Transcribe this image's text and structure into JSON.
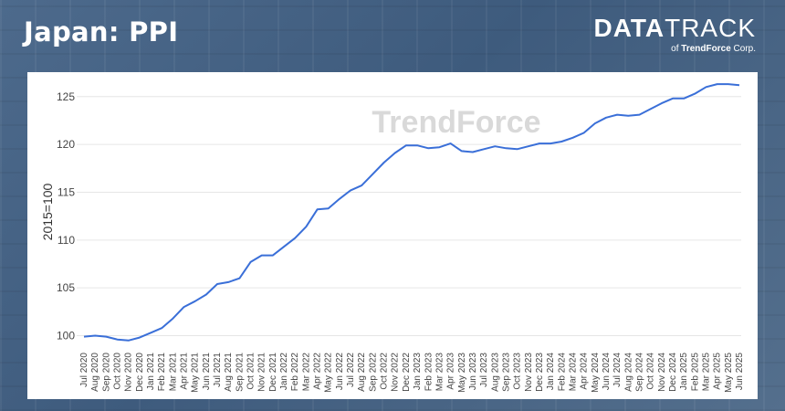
{
  "header": {
    "title": "Japan: PPI"
  },
  "brand": {
    "name_bold": "DATA",
    "name_light": "TRACK",
    "sub_prefix": "of ",
    "sub_name": "TrendForce",
    "sub_suffix": " Corp."
  },
  "watermark": "TrendForce",
  "colors": {
    "line": "#3a6fd8",
    "grid": "#e6e6e6"
  },
  "chart_data": {
    "type": "line",
    "title": "Japan: PPI",
    "ylabel": "2015=100",
    "ylim": [
      99,
      126.6
    ],
    "yticks": [
      100,
      105,
      110,
      115,
      120,
      125
    ],
    "grid": true,
    "legend": "none",
    "categories": [
      "Jul 2020",
      "Aug 2020",
      "Sep 2020",
      "Oct 2020",
      "Nov 2020",
      "Dec 2020",
      "Jan 2021",
      "Feb 2021",
      "Mar 2021",
      "Apr 2021",
      "May 2021",
      "Jun 2021",
      "Jul 2021",
      "Aug 2021",
      "Sep 2021",
      "Oct 2021",
      "Nov 2021",
      "Dec 2021",
      "Jan 2022",
      "Feb 2022",
      "Mar 2022",
      "Apr 2022",
      "May 2022",
      "Jun 2022",
      "Jul 2022",
      "Aug 2022",
      "Sep 2022",
      "Oct 2022",
      "Nov 2022",
      "Dec 2022",
      "Jan 2023",
      "Feb 2023",
      "Mar 2023",
      "Apr 2023",
      "May 2023",
      "Jun 2023",
      "Jul 2023",
      "Aug 2023",
      "Sep 2023",
      "Oct 2023",
      "Nov 2023",
      "Dec 2023",
      "Jan 2024",
      "Feb 2024",
      "Mar 2024",
      "Apr 2024",
      "May 2024",
      "Jun 2024",
      "Jul 2024",
      "Aug 2024",
      "Sep 2024",
      "Oct 2024",
      "Nov 2024",
      "Dec 2024",
      "Jan 2025",
      "Feb 2025",
      "Mar 2025",
      "Apr 2025",
      "May 2025",
      "Jun 2025"
    ],
    "series": [
      {
        "values": [
          99.9,
          100.0,
          99.9,
          99.6,
          99.5,
          99.8,
          100.3,
          100.8,
          101.8,
          103.0,
          103.6,
          104.3,
          105.4,
          105.6,
          106.0,
          107.7,
          108.4,
          108.4,
          109.3,
          110.2,
          111.4,
          113.2,
          113.3,
          114.3,
          115.2,
          115.7,
          116.9,
          118.1,
          119.1,
          119.9,
          119.9,
          119.6,
          119.7,
          120.1,
          119.3,
          119.2,
          119.5,
          119.8,
          119.6,
          119.5,
          119.8,
          120.1,
          120.1,
          120.3,
          120.7,
          121.2,
          122.2,
          122.8,
          123.1,
          123.0,
          123.1,
          123.7,
          124.3,
          124.8,
          124.8,
          125.3,
          126.0,
          126.3,
          126.3,
          126.2
        ]
      }
    ]
  }
}
